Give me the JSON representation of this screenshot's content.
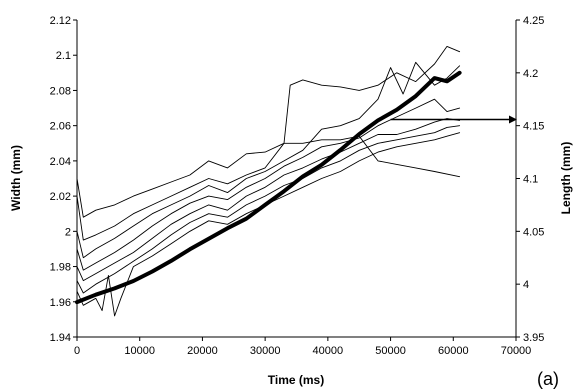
{
  "chart_data": {
    "type": "line",
    "title": "",
    "panel_label": "(a)",
    "xlabel": "Time (ms)",
    "ylabel": "Width (mm)",
    "y2label": "Length (mm)",
    "xlim": [
      0,
      70000
    ],
    "ylim": [
      1.94,
      2.12
    ],
    "y2lim": [
      3.95,
      4.25
    ],
    "xticks": [
      0,
      10000,
      20000,
      30000,
      40000,
      50000,
      60000,
      70000
    ],
    "xtick_labels": [
      "0",
      "10000",
      "20000",
      "30000",
      "40000",
      "50000",
      "60000",
      "70000"
    ],
    "yticks": [
      1.94,
      1.96,
      1.98,
      2,
      2.02,
      2.04,
      2.06,
      2.08,
      2.1,
      2.12
    ],
    "ytick_labels": [
      "1.94",
      "1.96",
      "1.98",
      "2",
      "2.02",
      "2.04",
      "2.06",
      "2.08",
      "2.1",
      "2.12"
    ],
    "y2ticks": [
      3.95,
      4,
      4.05,
      4.1,
      4.15,
      4.2,
      4.25
    ],
    "y2tick_labels": [
      "3.95",
      "4",
      "4.05",
      "4.1",
      "4.15",
      "4.2",
      "4.25"
    ],
    "grid": false,
    "annotations": [
      {
        "type": "arrow",
        "from": [
          50000,
          2.0635
        ],
        "to": [
          61000,
          2.0635
        ],
        "note": "points to right axis (Length)"
      }
    ],
    "colors": {
      "width_series": "#000000",
      "length_series": "#000000"
    },
    "series": [
      {
        "axis": "right",
        "style": "thick",
        "points": [
          [
            0,
            3.983
          ],
          [
            3000,
            3.99
          ],
          [
            6000,
            3.996
          ],
          [
            9000,
            4.003
          ],
          [
            12000,
            4.012
          ],
          [
            15000,
            4.022
          ],
          [
            18000,
            4.033
          ],
          [
            21000,
            4.043
          ],
          [
            24000,
            4.053
          ],
          [
            27000,
            4.062
          ],
          [
            30000,
            4.075
          ],
          [
            33000,
            4.088
          ],
          [
            36000,
            4.102
          ],
          [
            39000,
            4.113
          ],
          [
            42000,
            4.127
          ],
          [
            45000,
            4.142
          ],
          [
            48000,
            4.155
          ],
          [
            51000,
            4.165
          ],
          [
            54000,
            4.178
          ],
          [
            57000,
            4.195
          ],
          [
            59000,
            4.192
          ],
          [
            61000,
            4.2
          ]
        ]
      },
      {
        "axis": "left",
        "style": "thin",
        "points": [
          [
            0,
            2.03
          ],
          [
            1000,
            2.008
          ],
          [
            3000,
            2.012
          ],
          [
            6000,
            2.015
          ],
          [
            9000,
            2.02
          ],
          [
            12000,
            2.024
          ],
          [
            15000,
            2.028
          ],
          [
            18000,
            2.032
          ],
          [
            21000,
            2.04
          ],
          [
            24000,
            2.036
          ],
          [
            27000,
            2.044
          ],
          [
            30000,
            2.045
          ],
          [
            33000,
            2.05
          ],
          [
            36000,
            2.05
          ],
          [
            39000,
            2.052
          ],
          [
            42000,
            2.052
          ],
          [
            45000,
            2.054
          ],
          [
            48000,
            2.04
          ],
          [
            51000,
            2.038
          ],
          [
            54000,
            2.036
          ],
          [
            57000,
            2.034
          ],
          [
            61000,
            2.031
          ]
        ]
      },
      {
        "axis": "left",
        "style": "thin",
        "points": [
          [
            0,
            2.02
          ],
          [
            1000,
            1.995
          ],
          [
            3000,
            1.998
          ],
          [
            6000,
            2.003
          ],
          [
            9000,
            2.01
          ],
          [
            12000,
            2.015
          ],
          [
            15000,
            2.02
          ],
          [
            18000,
            2.025
          ],
          [
            21000,
            2.03
          ],
          [
            24000,
            2.027
          ],
          [
            27000,
            2.032
          ],
          [
            30000,
            2.036
          ],
          [
            33000,
            2.05
          ],
          [
            34000,
            2.083
          ],
          [
            36000,
            2.086
          ],
          [
            39000,
            2.083
          ],
          [
            42000,
            2.082
          ],
          [
            45000,
            2.08
          ],
          [
            48000,
            2.083
          ],
          [
            51000,
            2.09
          ],
          [
            54000,
            2.085
          ],
          [
            57000,
            2.095
          ],
          [
            59000,
            2.105
          ],
          [
            61000,
            2.102
          ]
        ]
      },
      {
        "axis": "left",
        "style": "thin",
        "points": [
          [
            0,
            2.0
          ],
          [
            1000,
            1.985
          ],
          [
            3000,
            1.99
          ],
          [
            6000,
            1.996
          ],
          [
            9000,
            2.003
          ],
          [
            12000,
            2.01
          ],
          [
            15000,
            2.015
          ],
          [
            18000,
            2.02
          ],
          [
            21000,
            2.026
          ],
          [
            24000,
            2.022
          ],
          [
            27000,
            2.03
          ],
          [
            30000,
            2.034
          ],
          [
            33000,
            2.04
          ],
          [
            36000,
            2.046
          ],
          [
            39000,
            2.058
          ],
          [
            42000,
            2.06
          ],
          [
            45000,
            2.064
          ],
          [
            48000,
            2.075
          ],
          [
            50000,
            2.093
          ],
          [
            52000,
            2.078
          ],
          [
            54000,
            2.096
          ],
          [
            57000,
            2.083
          ],
          [
            59000,
            2.087
          ],
          [
            61000,
            2.094
          ]
        ]
      },
      {
        "axis": "left",
        "style": "thin",
        "points": [
          [
            0,
            1.99
          ],
          [
            1000,
            1.978
          ],
          [
            3000,
            1.982
          ],
          [
            6000,
            1.988
          ],
          [
            9000,
            1.995
          ],
          [
            12000,
            2.003
          ],
          [
            15000,
            2.01
          ],
          [
            18000,
            2.016
          ],
          [
            21000,
            2.02
          ],
          [
            24000,
            2.018
          ],
          [
            27000,
            2.025
          ],
          [
            30000,
            2.03
          ],
          [
            33000,
            2.037
          ],
          [
            36000,
            2.042
          ],
          [
            39000,
            2.048
          ],
          [
            42000,
            2.05
          ],
          [
            45000,
            2.053
          ],
          [
            48000,
            2.06
          ],
          [
            51000,
            2.065
          ],
          [
            54000,
            2.07
          ],
          [
            57000,
            2.075
          ],
          [
            59000,
            2.068
          ],
          [
            61000,
            2.07
          ]
        ]
      },
      {
        "axis": "left",
        "style": "thin",
        "points": [
          [
            0,
            1.98
          ],
          [
            1000,
            1.972
          ],
          [
            3000,
            1.976
          ],
          [
            6000,
            1.982
          ],
          [
            9000,
            1.988
          ],
          [
            12000,
            1.996
          ],
          [
            15000,
            2.004
          ],
          [
            18000,
            2.01
          ],
          [
            21000,
            2.015
          ],
          [
            24000,
            2.012
          ],
          [
            27000,
            2.02
          ],
          [
            30000,
            2.025
          ],
          [
            33000,
            2.032
          ],
          [
            36000,
            2.036
          ],
          [
            39000,
            2.041
          ],
          [
            42000,
            2.045
          ],
          [
            45000,
            2.05
          ],
          [
            48000,
            2.055
          ],
          [
            51000,
            2.055
          ],
          [
            54000,
            2.058
          ],
          [
            57000,
            2.062
          ],
          [
            59000,
            2.064
          ],
          [
            61000,
            2.063
          ]
        ]
      },
      {
        "axis": "left",
        "style": "thin",
        "points": [
          [
            0,
            1.972
          ],
          [
            1000,
            1.965
          ],
          [
            3000,
            1.97
          ],
          [
            6000,
            1.976
          ],
          [
            9000,
            1.983
          ],
          [
            12000,
            1.99
          ],
          [
            15000,
            1.998
          ],
          [
            18000,
            2.005
          ],
          [
            21000,
            2.01
          ],
          [
            24000,
            2.008
          ],
          [
            27000,
            2.015
          ],
          [
            30000,
            2.02
          ],
          [
            33000,
            2.026
          ],
          [
            36000,
            2.03
          ],
          [
            39000,
            2.036
          ],
          [
            42000,
            2.04
          ],
          [
            45000,
            2.046
          ],
          [
            48000,
            2.05
          ],
          [
            51000,
            2.052
          ],
          [
            54000,
            2.054
          ],
          [
            57000,
            2.056
          ],
          [
            59000,
            2.059
          ],
          [
            61000,
            2.06
          ]
        ]
      },
      {
        "axis": "left",
        "style": "thin",
        "points": [
          [
            0,
            1.966
          ],
          [
            1000,
            1.958
          ],
          [
            3000,
            1.962
          ],
          [
            4000,
            1.955
          ],
          [
            5000,
            1.975
          ],
          [
            6000,
            1.952
          ],
          [
            7000,
            1.962
          ],
          [
            9000,
            1.98
          ],
          [
            12000,
            1.986
          ],
          [
            15000,
            1.993
          ],
          [
            18000,
            2.0
          ],
          [
            21000,
            2.006
          ],
          [
            24000,
            2.004
          ],
          [
            27000,
            2.01
          ],
          [
            30000,
            2.015
          ],
          [
            33000,
            2.02
          ],
          [
            36000,
            2.025
          ],
          [
            39000,
            2.03
          ],
          [
            42000,
            2.034
          ],
          [
            45000,
            2.04
          ],
          [
            48000,
            2.045
          ],
          [
            51000,
            2.048
          ],
          [
            54000,
            2.05
          ],
          [
            57000,
            2.052
          ],
          [
            59000,
            2.054
          ],
          [
            61000,
            2.056
          ]
        ]
      }
    ]
  }
}
